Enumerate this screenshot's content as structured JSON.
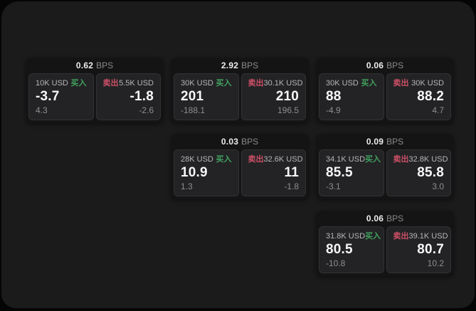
{
  "labels": {
    "bps": "BPS",
    "buy": "买入",
    "sell": "卖出"
  },
  "colors": {
    "buy": "#41a15f",
    "sell": "#ce5067",
    "window_bg": "#1b1b1c",
    "card_bg": "#141415",
    "panel_bg": "#232325"
  },
  "cards": [
    {
      "bps": "0.62",
      "buy": {
        "amount": "10K USD",
        "price": "-3.7",
        "delta": "4.3"
      },
      "sell": {
        "amount": "5.5K USD",
        "price": "-1.8",
        "delta": "-2.6"
      }
    },
    {
      "bps": "2.92",
      "buy": {
        "amount": "30K USD",
        "price": "201",
        "delta": "-188.1"
      },
      "sell": {
        "amount": "30.1K USD",
        "price": "210",
        "delta": "196.5"
      }
    },
    {
      "bps": "0.06",
      "buy": {
        "amount": "30K USD",
        "price": "88",
        "delta": "-4.9"
      },
      "sell": {
        "amount": "30K USD",
        "price": "88.2",
        "delta": "4.7"
      }
    },
    {
      "bps": "0.03",
      "buy": {
        "amount": "28K USD",
        "price": "10.9",
        "delta": "1.3"
      },
      "sell": {
        "amount": "32.6K USD",
        "price": "11",
        "delta": "-1.8"
      }
    },
    {
      "bps": "0.09",
      "buy": {
        "amount": "34.1K USD",
        "price": "85.5",
        "delta": "-3.1"
      },
      "sell": {
        "amount": "32.8K USD",
        "price": "85.8",
        "delta": "3.0"
      }
    },
    {
      "bps": "0.06",
      "buy": {
        "amount": "31.8K USD",
        "price": "80.5",
        "delta": "-10.8"
      },
      "sell": {
        "amount": "39.1K USD",
        "price": "80.7",
        "delta": "10.2"
      }
    }
  ]
}
